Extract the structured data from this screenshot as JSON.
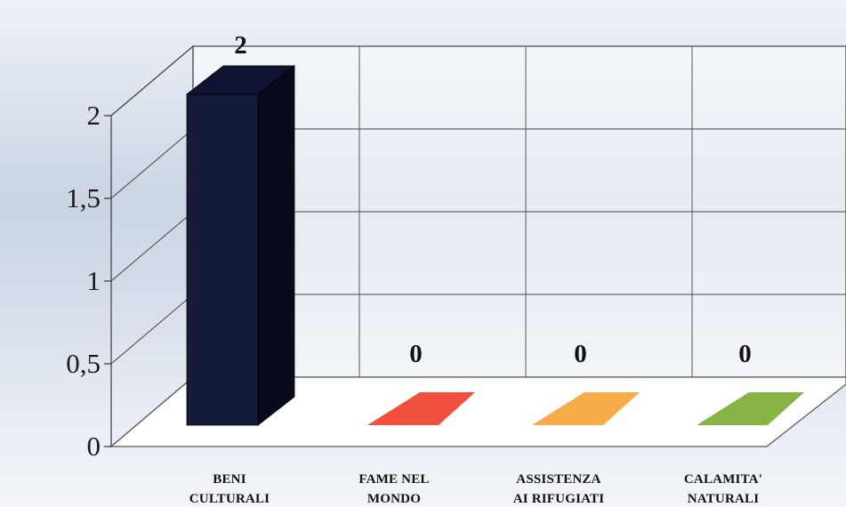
{
  "chart_data": {
    "type": "bar",
    "categories": [
      [
        "BENI",
        "CULTURALI"
      ],
      [
        "FAME NEL",
        "MONDO"
      ],
      [
        "ASSISTENZA",
        "AI RIFUGIATI"
      ],
      [
        "CALAMITA'",
        "NATURALI"
      ]
    ],
    "values": [
      2,
      0,
      0,
      0
    ],
    "data_labels": [
      "2",
      "0",
      "0",
      "0"
    ],
    "colors": [
      "#141c3a",
      "#f0503c",
      "#f7ab4a",
      "#86b446"
    ],
    "yticks": [
      0,
      0.5,
      1,
      1.5,
      2
    ],
    "ytick_labels": [
      "0",
      "0,5",
      "1",
      "1,5",
      "2"
    ],
    "ylim": [
      0,
      2
    ],
    "grid": true,
    "style": "3d-column",
    "legend": "none"
  }
}
